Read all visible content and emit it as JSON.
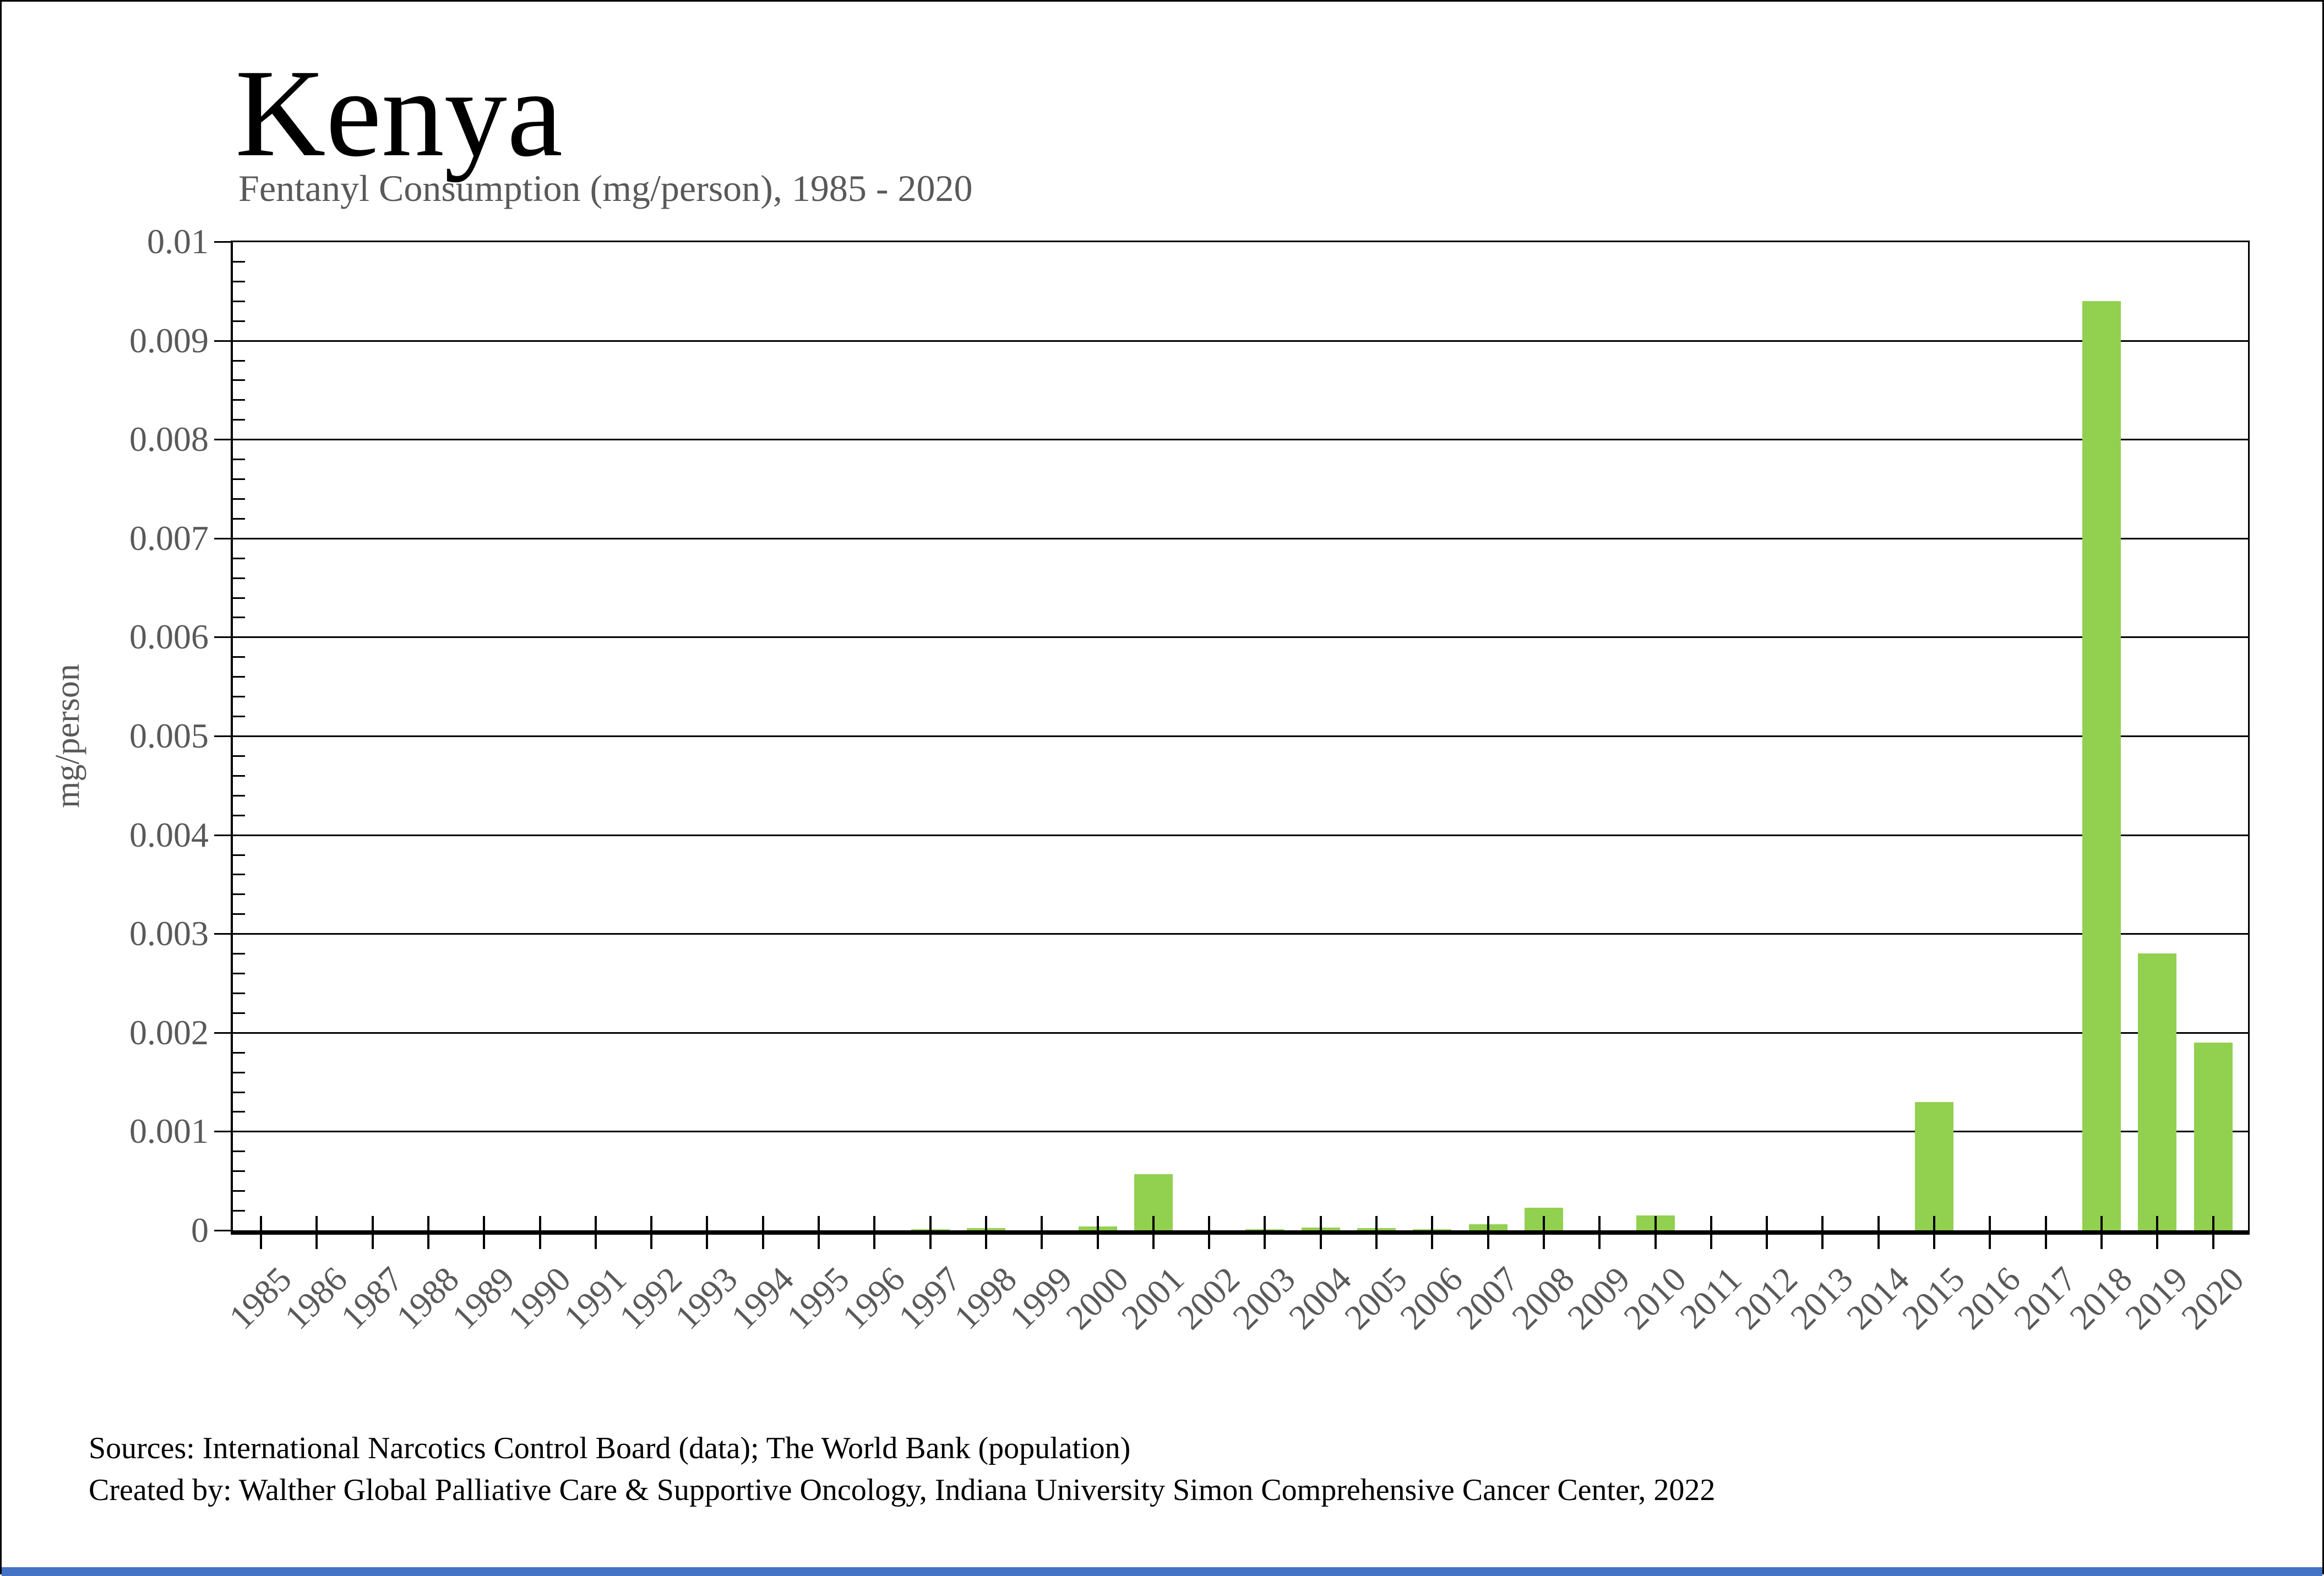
{
  "title": "Kenya",
  "subtitle": "Fentanyl Consumption (mg/person), 1985 - 2020",
  "y_axis": {
    "label": "mg/person",
    "tick_labels": [
      "0",
      "0.001",
      "0.002",
      "0.003",
      "0.004",
      "0.005",
      "0.006",
      "0.007",
      "0.008",
      "0.009",
      "0.01"
    ],
    "min": 0,
    "max": 0.01,
    "major_step": 0.001,
    "minor_step": 0.0002
  },
  "footer": {
    "line1": "Sources: International Narcotics Control Board (data); The World Bank (population)",
    "line2": "Created by: Walther Global Palliative Care & Supportive Oncology, Indiana University Simon Comprehensive Cancer Center, 2022"
  },
  "colors": {
    "bar": "#92D050",
    "axis_text": "#595959",
    "title_text": "#000000",
    "gridline": "#000000",
    "bottom_strip": "#4472C4"
  },
  "chart_data": {
    "type": "bar",
    "title": "Kenya",
    "subtitle": "Fentanyl Consumption (mg/person), 1985 - 2020",
    "xlabel": "",
    "ylabel": "mg/person",
    "ylim": [
      0,
      0.01
    ],
    "grid": true,
    "legend": "none",
    "categories": [
      1985,
      1986,
      1987,
      1988,
      1989,
      1990,
      1991,
      1992,
      1993,
      1994,
      1995,
      1996,
      1997,
      1998,
      1999,
      2000,
      2001,
      2002,
      2003,
      2004,
      2005,
      2006,
      2007,
      2008,
      2009,
      2010,
      2011,
      2012,
      2013,
      2014,
      2015,
      2016,
      2017,
      2018,
      2019,
      2020
    ],
    "values": [
      0,
      0,
      0,
      0,
      0,
      0,
      0,
      0,
      0,
      0,
      0,
      0,
      1e-05,
      2e-05,
      0,
      4e-05,
      0.00057,
      0,
      1e-05,
      3e-05,
      2e-05,
      1e-05,
      6e-05,
      0.00023,
      0,
      0.00015,
      0,
      0,
      0,
      0,
      0.0013,
      0,
      0,
      0.0094,
      0.0028,
      0.0019
    ]
  }
}
